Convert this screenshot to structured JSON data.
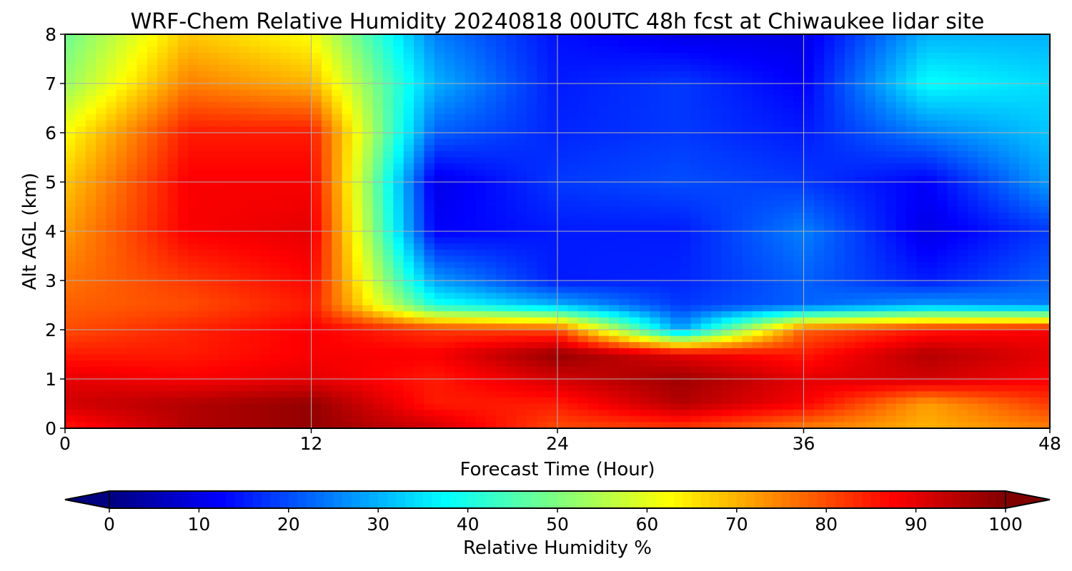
{
  "chart_data": {
    "type": "heatmap",
    "title": "WRF-Chem Relative Humidity 20240818 00UTC 48h fcst at Chiwaukee lidar site",
    "xlabel": "Forecast Time (Hour)",
    "ylabel": "Alt AGL (km)",
    "xlim": [
      0,
      48
    ],
    "ylim": [
      0,
      8
    ],
    "xticks": [
      "0",
      "12",
      "24",
      "36",
      "48"
    ],
    "yticks": [
      "0",
      "1",
      "2",
      "3",
      "4",
      "5",
      "6",
      "7",
      "8"
    ],
    "grid": true,
    "colormap": "jet",
    "colorbar": {
      "label": "Relative Humidity %",
      "range": [
        0,
        100
      ],
      "ticks": [
        "0",
        "10",
        "20",
        "30",
        "40",
        "50",
        "60",
        "70",
        "80",
        "90",
        "100"
      ],
      "extend": "both",
      "orientation": "horizontal"
    },
    "x": [
      0,
      6,
      12,
      18,
      24,
      30,
      36,
      42,
      48
    ],
    "y": [
      0,
      0.5,
      1,
      1.5,
      2,
      2.5,
      3,
      4,
      5,
      6,
      7,
      8
    ],
    "z": [
      [
        85,
        95,
        98,
        92,
        80,
        82,
        75,
        70,
        75
      ],
      [
        92,
        95,
        98,
        85,
        85,
        95,
        88,
        72,
        82
      ],
      [
        90,
        88,
        90,
        85,
        92,
        97,
        90,
        92,
        88
      ],
      [
        85,
        85,
        88,
        88,
        98,
        90,
        85,
        95,
        90
      ],
      [
        80,
        84,
        88,
        82,
        80,
        28,
        78,
        85,
        88
      ],
      [
        78,
        80,
        85,
        40,
        30,
        18,
        22,
        28,
        25
      ],
      [
        76,
        82,
        87,
        28,
        15,
        16,
        22,
        15,
        22
      ],
      [
        72,
        88,
        90,
        12,
        15,
        15,
        25,
        10,
        18
      ],
      [
        68,
        88,
        88,
        10,
        18,
        20,
        18,
        12,
        28
      ],
      [
        62,
        85,
        85,
        22,
        16,
        18,
        15,
        25,
        32
      ],
      [
        52,
        75,
        70,
        30,
        15,
        18,
        12,
        38,
        34
      ],
      [
        48,
        68,
        62,
        25,
        14,
        10,
        10,
        30,
        30
      ]
    ]
  }
}
